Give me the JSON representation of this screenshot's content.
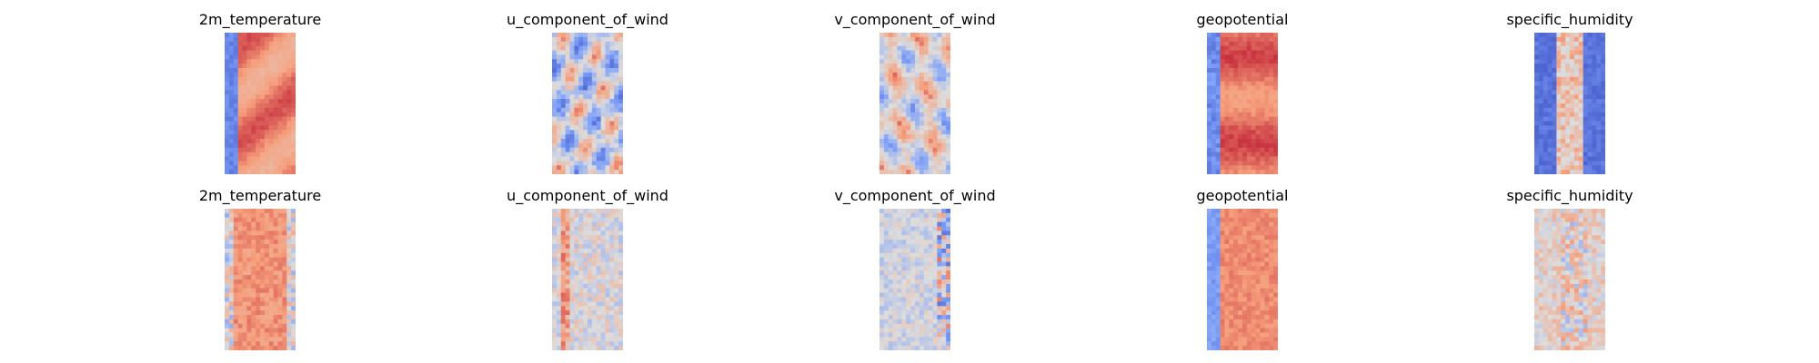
{
  "colors": {
    "colormap": "coolwarm",
    "cold": "#3b4cc0",
    "neutral": "#dddddd",
    "warm": "#b40426",
    "background": "#ffffff"
  },
  "chart_data": [
    {
      "type": "heatmap",
      "row": "top",
      "title": "2m_temperature",
      "pattern": "temperature",
      "axes": "off",
      "colorbar": false
    },
    {
      "type": "heatmap",
      "row": "top",
      "title": "u_component_of_wind",
      "pattern": "wind_u",
      "axes": "off",
      "colorbar": false
    },
    {
      "type": "heatmap",
      "row": "top",
      "title": "v_component_of_wind",
      "pattern": "wind_v",
      "axes": "off",
      "colorbar": false
    },
    {
      "type": "heatmap",
      "row": "top",
      "title": "geopotential",
      "pattern": "geopotential",
      "axes": "off",
      "colorbar": false
    },
    {
      "type": "heatmap",
      "row": "top",
      "title": "specific_humidity",
      "pattern": "humidity",
      "axes": "off",
      "colorbar": false
    },
    {
      "type": "heatmap",
      "row": "bottom",
      "title": "2m_temperature",
      "pattern": "temperature_pred",
      "axes": "off",
      "colorbar": false
    },
    {
      "type": "heatmap",
      "row": "bottom",
      "title": "u_component_of_wind",
      "pattern": "wind_u_pred",
      "axes": "off",
      "colorbar": false
    },
    {
      "type": "heatmap",
      "row": "bottom",
      "title": "v_component_of_wind",
      "pattern": "wind_v_pred",
      "axes": "off",
      "colorbar": false
    },
    {
      "type": "heatmap",
      "row": "bottom",
      "title": "geopotential",
      "pattern": "geopotential_pred",
      "axes": "off",
      "colorbar": false
    },
    {
      "type": "heatmap",
      "row": "bottom",
      "title": "specific_humidity",
      "pattern": "humidity_pred",
      "axes": "off",
      "colorbar": false
    }
  ]
}
